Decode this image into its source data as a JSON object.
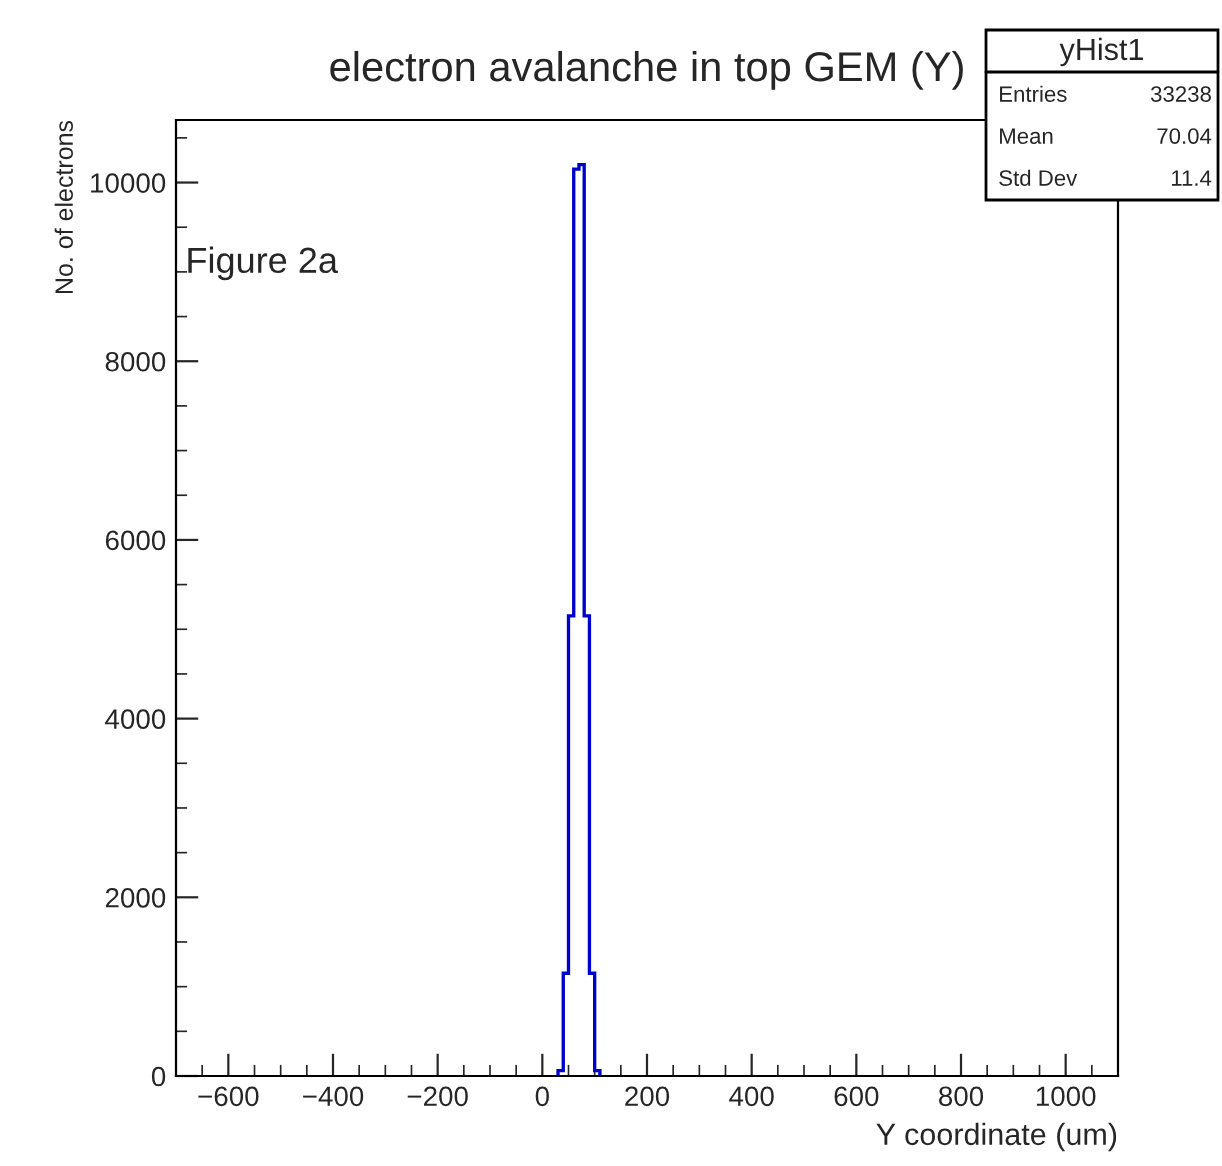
{
  "chart_data": {
    "type": "histogram",
    "title": "electron avalanche in top GEM (Y)",
    "xlabel": "Y coordinate (um)",
    "ylabel": "No. of electrons",
    "bins": [
      30,
      40,
      50,
      60,
      70,
      80,
      90,
      100,
      110
    ],
    "values": [
      60,
      1150,
      5150,
      10150,
      10200,
      5150,
      1150,
      60
    ],
    "color": "#0000cc",
    "xlim": [
      -700,
      1100
    ],
    "xticks": [
      {
        "value": -600,
        "label": "−600"
      },
      {
        "value": -400,
        "label": "−400"
      },
      {
        "value": -200,
        "label": "−200"
      },
      0,
      200,
      400,
      600,
      800,
      1000
    ],
    "ylim": [
      0,
      10700
    ],
    "yticks": [
      0,
      2000,
      4000,
      6000,
      8000,
      10000
    ],
    "grid": false,
    "legend": false,
    "annotations": [
      "Figure 2a",
      "yHist1",
      "Entries",
      "33238",
      "Mean",
      "70.04",
      "Std Dev",
      "11.4"
    ]
  }
}
